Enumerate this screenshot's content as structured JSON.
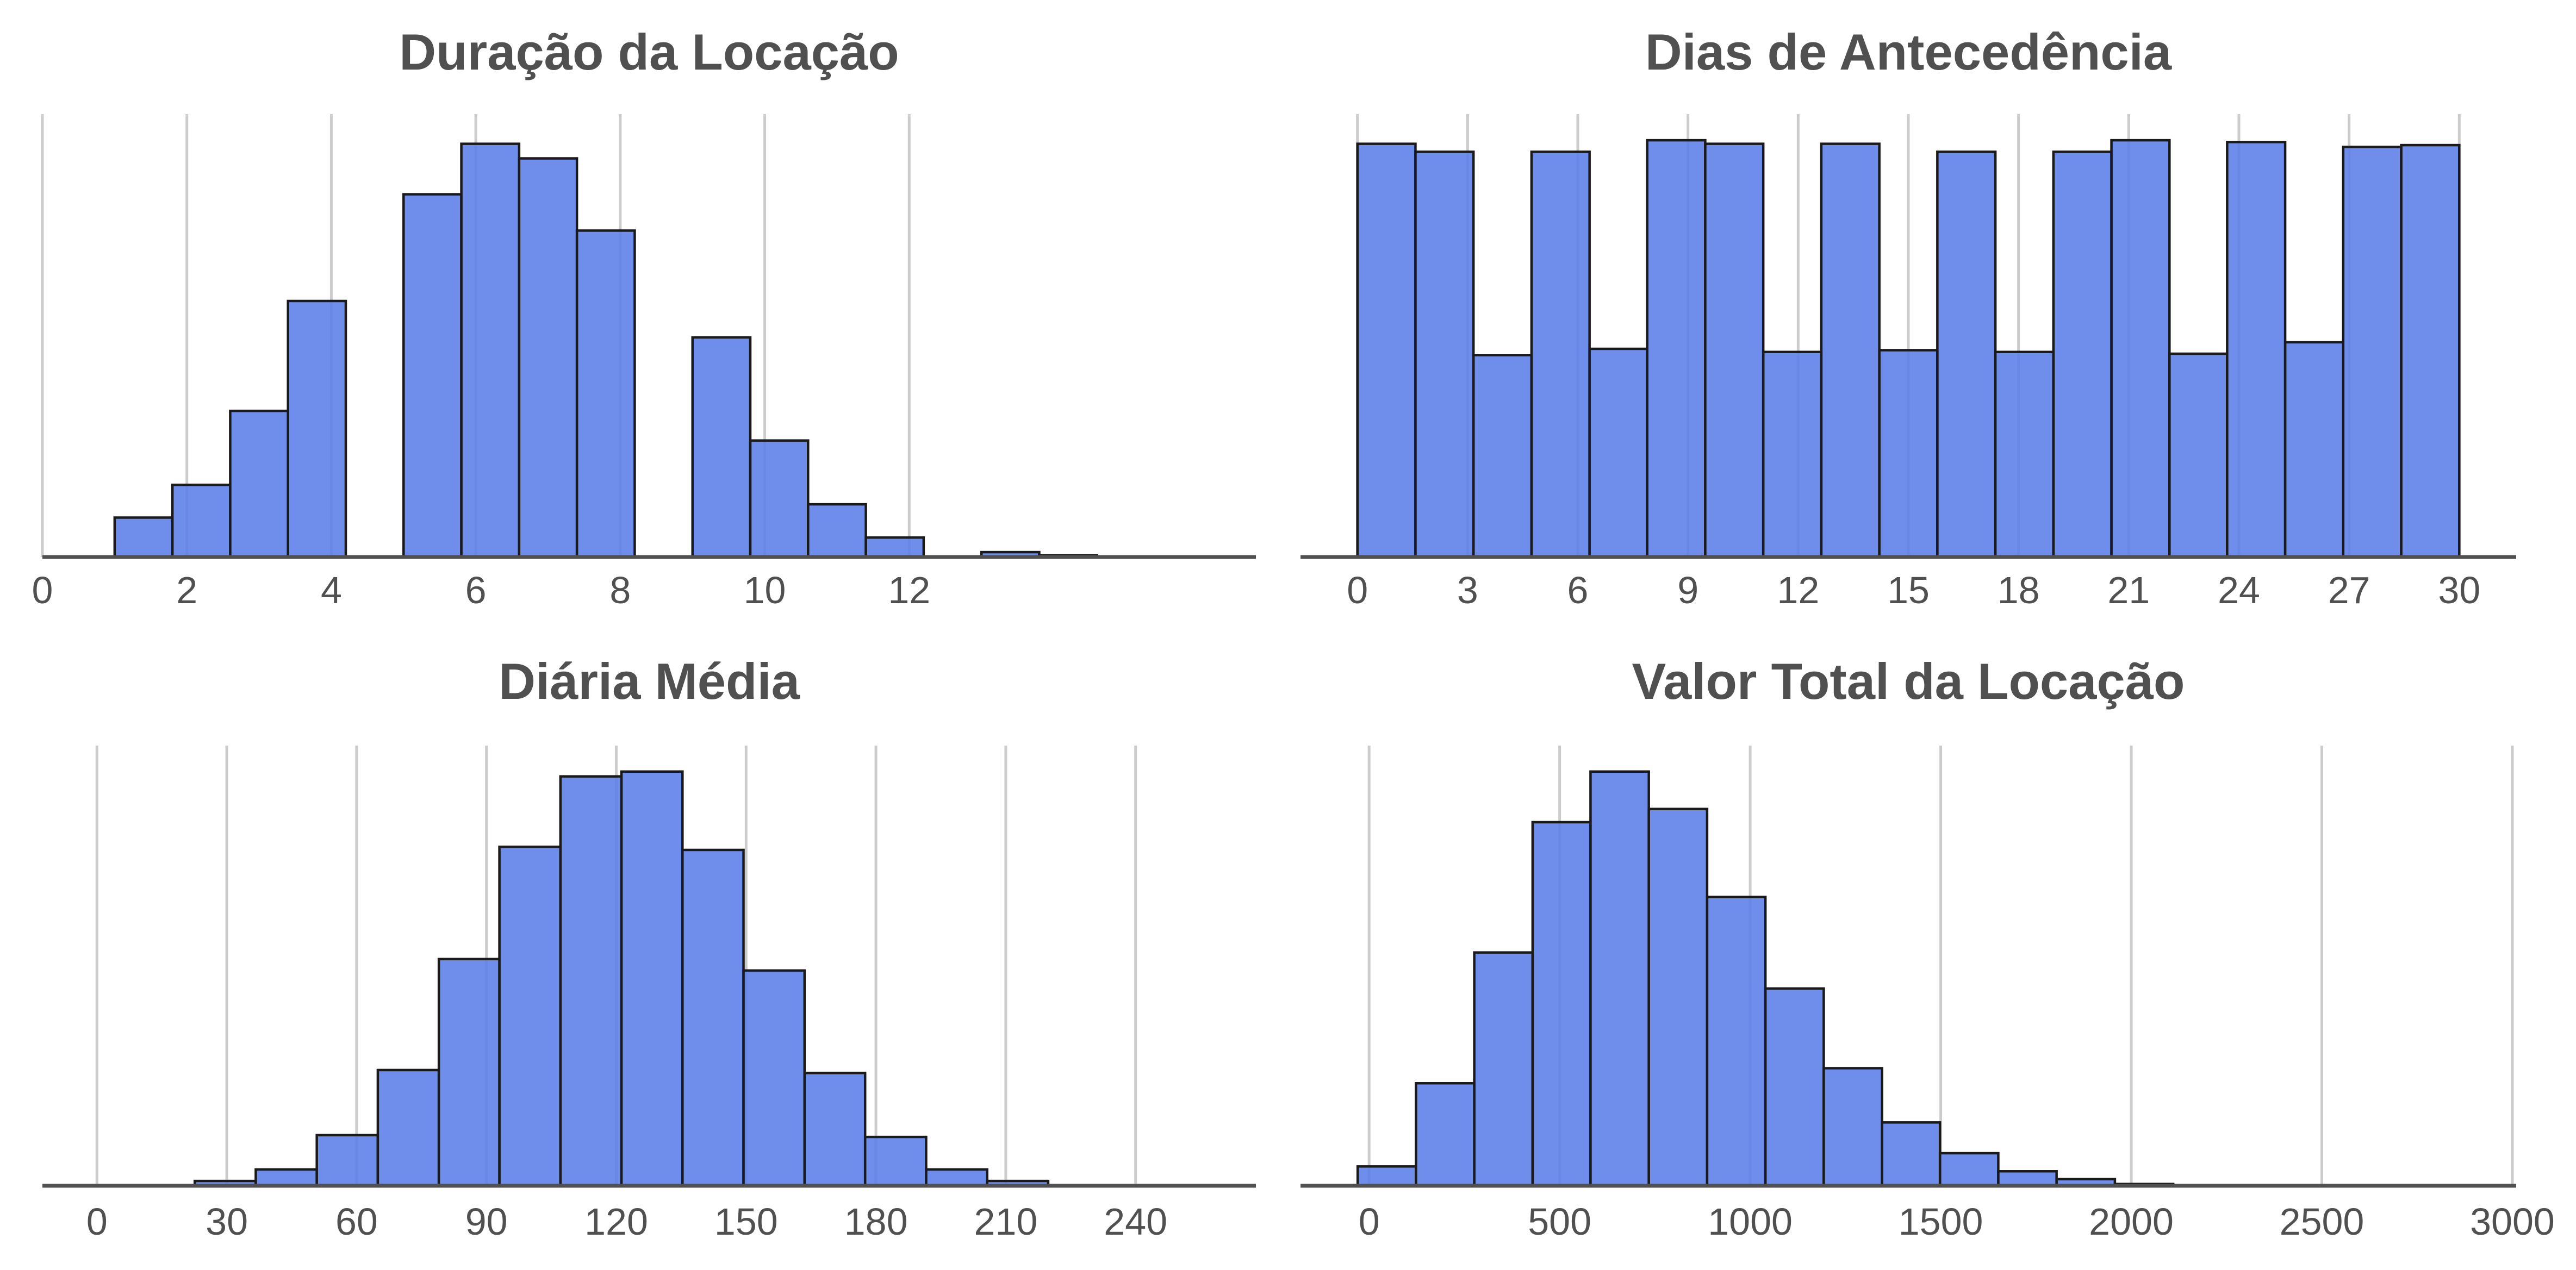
{
  "chart_data": [
    {
      "type": "bar",
      "title": "Duração da Locação",
      "xlabel": "",
      "ylabel": "",
      "xlim": [
        0,
        16.8
      ],
      "ylim": [
        0,
        1
      ],
      "ticks": [
        0,
        2,
        4,
        6,
        8,
        10,
        12
      ],
      "tick_labels": [
        "0",
        "2",
        "4",
        "6",
        "8",
        "10",
        "12"
      ],
      "grid": true,
      "bar_color": "#5b7de8",
      "bins": [
        {
          "x0": 1.0,
          "x1": 1.8,
          "value": 0.089
        },
        {
          "x0": 1.8,
          "x1": 2.6,
          "value": 0.163
        },
        {
          "x0": 2.6,
          "x1": 3.4,
          "value": 0.33
        },
        {
          "x0": 3.4,
          "x1": 4.2,
          "value": 0.578
        },
        {
          "x0": 5.0,
          "x1": 5.8,
          "value": 0.819
        },
        {
          "x0": 5.8,
          "x1": 6.6,
          "value": 0.933
        },
        {
          "x0": 6.6,
          "x1": 7.4,
          "value": 0.9
        },
        {
          "x0": 7.4,
          "x1": 8.2,
          "value": 0.737
        },
        {
          "x0": 9.0,
          "x1": 9.8,
          "value": 0.496
        },
        {
          "x0": 9.8,
          "x1": 10.6,
          "value": 0.263
        },
        {
          "x0": 10.6,
          "x1": 11.4,
          "value": 0.119
        },
        {
          "x0": 11.4,
          "x1": 12.2,
          "value": 0.044
        },
        {
          "x0": 13.0,
          "x1": 13.8,
          "value": 0.011
        },
        {
          "x0": 13.8,
          "x1": 14.6,
          "value": 0.004
        }
      ]
    },
    {
      "type": "bar",
      "title": "Dias de Antecedência",
      "xlabel": "",
      "ylabel": "",
      "xlim": [
        -1.55,
        31.55
      ],
      "ylim": [
        0,
        1
      ],
      "ticks": [
        0,
        3,
        6,
        9,
        12,
        15,
        18,
        21,
        24,
        27,
        30
      ],
      "tick_labels": [
        "0",
        "3",
        "6",
        "9",
        "12",
        "15",
        "18",
        "21",
        "24",
        "27",
        "30"
      ],
      "grid": true,
      "bar_color": "#5b7de8",
      "bins": [
        {
          "x0": 0.0,
          "x1": 1.58,
          "value": 0.933
        },
        {
          "x0": 1.58,
          "x1": 3.16,
          "value": 0.915
        },
        {
          "x0": 3.16,
          "x1": 4.74,
          "value": 0.456
        },
        {
          "x0": 4.74,
          "x1": 6.32,
          "value": 0.915
        },
        {
          "x0": 6.32,
          "x1": 7.89,
          "value": 0.47
        },
        {
          "x0": 7.89,
          "x1": 9.47,
          "value": 0.941
        },
        {
          "x0": 9.47,
          "x1": 11.05,
          "value": 0.933
        },
        {
          "x0": 11.05,
          "x1": 12.63,
          "value": 0.463
        },
        {
          "x0": 12.63,
          "x1": 14.21,
          "value": 0.933
        },
        {
          "x0": 14.21,
          "x1": 15.79,
          "value": 0.467
        },
        {
          "x0": 15.79,
          "x1": 17.37,
          "value": 0.915
        },
        {
          "x0": 17.37,
          "x1": 18.95,
          "value": 0.463
        },
        {
          "x0": 18.95,
          "x1": 20.53,
          "value": 0.915
        },
        {
          "x0": 20.53,
          "x1": 22.11,
          "value": 0.941
        },
        {
          "x0": 22.11,
          "x1": 23.68,
          "value": 0.459
        },
        {
          "x0": 23.68,
          "x1": 25.26,
          "value": 0.937
        },
        {
          "x0": 25.26,
          "x1": 26.84,
          "value": 0.485
        },
        {
          "x0": 26.84,
          "x1": 28.42,
          "value": 0.926
        },
        {
          "x0": 28.42,
          "x1": 30.0,
          "value": 0.93
        }
      ]
    },
    {
      "type": "bar",
      "title": "Diária Média",
      "xlabel": "",
      "ylabel": "",
      "xlim": [
        -12.6,
        267.8
      ],
      "ylim": [
        0,
        1
      ],
      "ticks": [
        0,
        30,
        60,
        90,
        120,
        150,
        180,
        210,
        240
      ],
      "tick_labels": [
        "0",
        "30",
        "60",
        "90",
        "120",
        "150",
        "180",
        "210",
        "240"
      ],
      "grid": true,
      "bar_color": "#5b7de8",
      "bins": [
        {
          "x0": 22.6,
          "x1": 36.7,
          "value": 0.011
        },
        {
          "x0": 36.7,
          "x1": 50.8,
          "value": 0.037
        },
        {
          "x0": 50.8,
          "x1": 64.9,
          "value": 0.115
        },
        {
          "x0": 64.9,
          "x1": 79.0,
          "value": 0.263
        },
        {
          "x0": 79.0,
          "x1": 93.0,
          "value": 0.515
        },
        {
          "x0": 93.0,
          "x1": 107.1,
          "value": 0.77
        },
        {
          "x0": 107.1,
          "x1": 121.2,
          "value": 0.93
        },
        {
          "x0": 121.2,
          "x1": 135.3,
          "value": 0.941
        },
        {
          "x0": 135.3,
          "x1": 149.4,
          "value": 0.763
        },
        {
          "x0": 149.4,
          "x1": 163.5,
          "value": 0.489
        },
        {
          "x0": 163.5,
          "x1": 177.5,
          "value": 0.256
        },
        {
          "x0": 177.5,
          "x1": 191.6,
          "value": 0.111
        },
        {
          "x0": 191.6,
          "x1": 205.7,
          "value": 0.037
        },
        {
          "x0": 205.7,
          "x1": 219.8,
          "value": 0.011
        }
      ]
    },
    {
      "type": "bar",
      "title": "Valor Total da Locação",
      "xlabel": "",
      "ylabel": "",
      "xlim": [
        -180,
        3010
      ],
      "ylim": [
        0,
        1
      ],
      "ticks": [
        0,
        500,
        1000,
        1500,
        2000,
        2500,
        3000
      ],
      "tick_labels": [
        "0",
        "500",
        "1000",
        "1500",
        "2000",
        "2500",
        "3000"
      ],
      "grid": true,
      "bar_color": "#5b7de8",
      "bins": [
        {
          "x0": -30,
          "x1": 123,
          "value": 0.044
        },
        {
          "x0": 123,
          "x1": 276,
          "value": 0.233
        },
        {
          "x0": 276,
          "x1": 429,
          "value": 0.53
        },
        {
          "x0": 429,
          "x1": 581,
          "value": 0.826
        },
        {
          "x0": 581,
          "x1": 734,
          "value": 0.941
        },
        {
          "x0": 734,
          "x1": 887,
          "value": 0.856
        },
        {
          "x0": 887,
          "x1": 1040,
          "value": 0.656
        },
        {
          "x0": 1040,
          "x1": 1193,
          "value": 0.448
        },
        {
          "x0": 1193,
          "x1": 1346,
          "value": 0.267
        },
        {
          "x0": 1346,
          "x1": 1498,
          "value": 0.144
        },
        {
          "x0": 1498,
          "x1": 1651,
          "value": 0.074
        },
        {
          "x0": 1651,
          "x1": 1804,
          "value": 0.033
        },
        {
          "x0": 1804,
          "x1": 1957,
          "value": 0.015
        },
        {
          "x0": 1957,
          "x1": 2110,
          "value": 0.004
        }
      ]
    }
  ]
}
